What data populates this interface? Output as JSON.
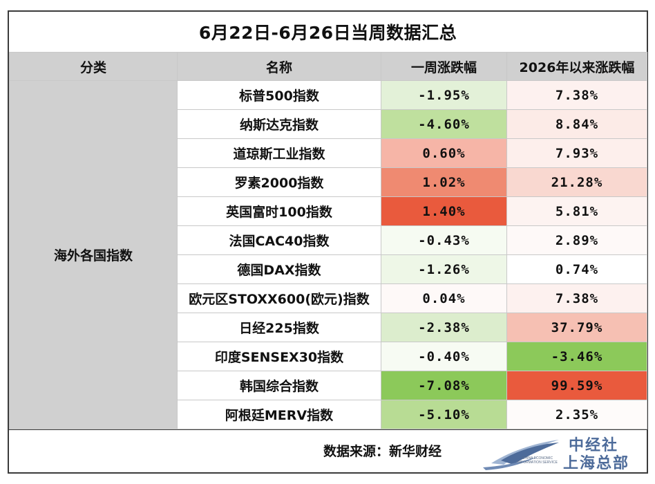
{
  "title": "6月22日-6月26日当周数据汇总",
  "chart_data": {
    "type": "table",
    "columns": [
      "分类",
      "名称",
      "一周涨跌幅",
      "2026年以来涨跌幅"
    ],
    "category": "海外各国指数",
    "rows": [
      {
        "name": "标普500指数",
        "week": "-1.95%",
        "ytd": "7.38%",
        "week_bg": "#e3f1d8",
        "ytd_bg": "#fdf1ef"
      },
      {
        "name": "纳斯达克指数",
        "week": "-4.60%",
        "ytd": "8.84%",
        "week_bg": "#bfe09e",
        "ytd_bg": "#fcebe7"
      },
      {
        "name": "道琼斯工业指数",
        "week": "0.60%",
        "ytd": "7.93%",
        "week_bg": "#f6b5a7",
        "ytd_bg": "#fdefec"
      },
      {
        "name": "罗素2000指数",
        "week": "1.02%",
        "ytd": "21.28%",
        "week_bg": "#ef8a71",
        "ytd_bg": "#f9d8d0"
      },
      {
        "name": "英国富时100指数",
        "week": "1.40%",
        "ytd": "5.81%",
        "week_bg": "#e95a3d",
        "ytd_bg": "#fdf3f1"
      },
      {
        "name": "法国CAC40指数",
        "week": "-0.43%",
        "ytd": "2.89%",
        "week_bg": "#f6fbf2",
        "ytd_bg": "#fef9f8"
      },
      {
        "name": "德国DAX指数",
        "week": "-1.26%",
        "ytd": "0.74%",
        "week_bg": "#eef7e7",
        "ytd_bg": "#ffffff"
      },
      {
        "name": "欧元区STOXX600(欧元)指数",
        "week": "0.04%",
        "ytd": "7.38%",
        "week_bg": "#fef9f8",
        "ytd_bg": "#fdf1ef"
      },
      {
        "name": "日经225指数",
        "week": "-2.38%",
        "ytd": "37.79%",
        "week_bg": "#dcedcd",
        "ytd_bg": "#f6c0b3"
      },
      {
        "name": "印度SENSEX30指数",
        "week": "-0.40%",
        "ytd": "-3.46%",
        "week_bg": "#f7fbf3",
        "ytd_bg": "#8cc95a"
      },
      {
        "name": "韩国综合指数",
        "week": "-7.08%",
        "ytd": "99.59%",
        "week_bg": "#8cc95a",
        "ytd_bg": "#e95a3d"
      },
      {
        "name": "阿根廷MERV指数",
        "week": "-5.10%",
        "ytd": "2.35%",
        "week_bg": "#b8dc94",
        "ytd_bg": "#fefbfa"
      }
    ],
    "color_scale": {
      "negative": "#8cc95a",
      "positive": "#e95a3d",
      "neutral": "#ffffff"
    }
  },
  "footer": {
    "source": "数据来源：新华财经",
    "logo_cn_line1": "中经社",
    "logo_cn_line2": "上海总部",
    "logo_en": "CHINA ECONOMIC INFORMATION SERVICE"
  },
  "colors": {
    "header_bg": "#d0d0d0",
    "border": "#3a3a3a",
    "logo_blue": "#4d6b9a"
  }
}
